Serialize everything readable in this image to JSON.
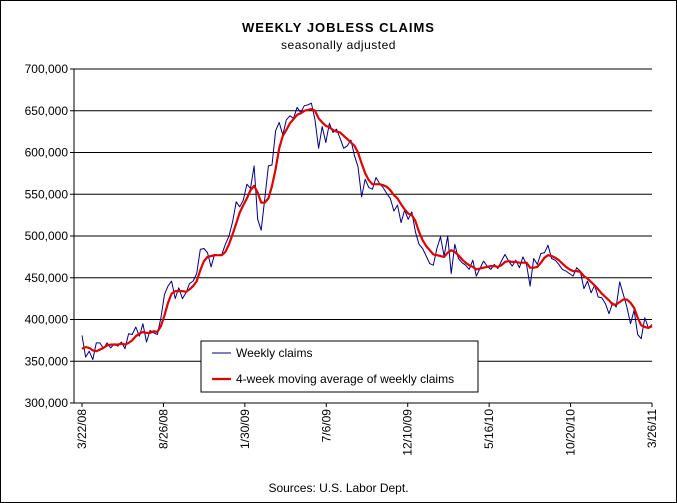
{
  "chart_data": {
    "type": "line",
    "title": "WEEKLY JOBLESS CLAIMS",
    "subtitle": "seasonally adjusted",
    "source": "Sources: U.S. Labor Dept.",
    "ylim": [
      300000,
      700000
    ],
    "y_ticks": [
      "300,000",
      "350,000",
      "400,000",
      "450,000",
      "500,000",
      "550,000",
      "600,000",
      "650,000",
      "700,000"
    ],
    "x_ticks": [
      "3/22/08",
      "8/26/08",
      "1/30/09",
      "7/6/09",
      "12/10/09",
      "5/16/10",
      "10/20/10",
      "3/26/11"
    ],
    "grid": "horizontal",
    "legend_position": "bottom-left",
    "series": [
      {
        "name": "Weekly claims",
        "color": "#000080",
        "values": [
          381000,
          355000,
          362000,
          352000,
          372000,
          372000,
          365000,
          372000,
          366000,
          371000,
          368000,
          373000,
          365000,
          383000,
          382000,
          391000,
          380000,
          395000,
          373000,
          387000,
          384000,
          382000,
          402000,
          430000,
          440000,
          446000,
          425000,
          438000,
          425000,
          432000,
          443000,
          446000,
          455000,
          484000,
          485000,
          480000,
          463000,
          478000,
          477000,
          478000,
          490000,
          500000,
          517000,
          541000,
          535000,
          543000,
          562000,
          557000,
          584000,
          520000,
          507000,
          545000,
          584000,
          585000,
          626000,
          636000,
          621000,
          639000,
          644000,
          641000,
          654000,
          648000,
          656000,
          657000,
          659000,
          639000,
          605000,
          631000,
          612000,
          635000,
          624000,
          628000,
          617000,
          605000,
          608000,
          615000,
          596000,
          583000,
          547000,
          568000,
          558000,
          556000,
          570000,
          563000,
          558000,
          551000,
          545000,
          530000,
          537000,
          516000,
          531000,
          520000,
          529000,
          505000,
          490000,
          485000,
          476000,
          467000,
          465000,
          485000,
          499000,
          476000,
          500000,
          455000,
          490000,
          473000,
          468000,
          465000,
          460000,
          471000,
          452000,
          461000,
          470000,
          464000,
          460000,
          466000,
          461000,
          470000,
          478000,
          470000,
          464000,
          471000,
          462000,
          475000,
          466000,
          440000,
          473000,
          466000,
          479000,
          480000,
          489000,
          473000,
          471000,
          466000,
          460000,
          458000,
          455000,
          452000,
          462000,
          458000,
          437000,
          446000,
          432000,
          441000,
          427000,
          426000,
          419000,
          407000,
          420000,
          415000,
          445000,
          430000,
          415000,
          395000,
          411000,
          382000,
          377000,
          402000,
          390000,
          394000
        ]
      },
      {
        "name": "4-week moving average of weekly claims",
        "color": "#e00000",
        "values": [
          365000,
          367000,
          366000,
          363000,
          362000,
          364000,
          366000,
          369000,
          370000,
          370000,
          370000,
          371000,
          370000,
          372000,
          375000,
          380000,
          383000,
          385000,
          384000,
          384000,
          386000,
          385000,
          392000,
          405000,
          420000,
          431000,
          434000,
          434000,
          434000,
          433000,
          436000,
          440000,
          446000,
          459000,
          470000,
          475000,
          476000,
          477000,
          477000,
          477000,
          481000,
          490000,
          502000,
          515000,
          528000,
          537000,
          545000,
          555000,
          560000,
          552000,
          540000,
          540000,
          545000,
          560000,
          580000,
          605000,
          620000,
          627000,
          635000,
          640000,
          645000,
          647000,
          650000,
          651000,
          652000,
          650000,
          641000,
          636000,
          632000,
          630000,
          627000,
          625000,
          624000,
          620000,
          616000,
          612000,
          608000,
          600000,
          587000,
          575000,
          567000,
          562000,
          562000,
          562000,
          561000,
          559000,
          555000,
          549000,
          545000,
          538000,
          532000,
          527000,
          525000,
          518000,
          505000,
          495000,
          488000,
          483000,
          478000,
          477000,
          476000,
          475000,
          480000,
          483000,
          481000,
          477000,
          472000,
          468000,
          465000,
          463000,
          460000,
          461000,
          462000,
          463000,
          464000,
          464000,
          463000,
          465000,
          469000,
          470000,
          469000,
          469000,
          468000,
          468000,
          468000,
          462000,
          462000,
          463000,
          468000,
          474000,
          477000,
          476000,
          474000,
          471000,
          467000,
          463000,
          460000,
          458000,
          458000,
          457000,
          452000,
          449000,
          445000,
          441000,
          436000,
          431000,
          427000,
          423000,
          418000,
          418000,
          421000,
          424000,
          424000,
          420000,
          414000,
          402000,
          393000,
          391000,
          390000,
          392000
        ]
      }
    ]
  }
}
